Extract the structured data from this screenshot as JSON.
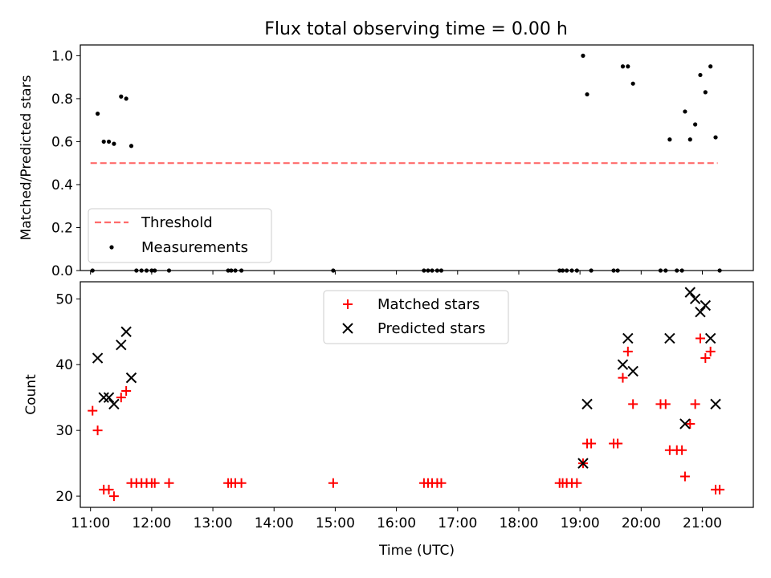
{
  "figure": {
    "title": "Flux total observing time = 0.00 h"
  },
  "chart_data": [
    {
      "type": "scatter",
      "ylabel": "Matched/Predicted stars",
      "xlabel": "",
      "x_axis": "time",
      "xlim": [
        "10:50",
        "21:50"
      ],
      "ylim": [
        0,
        1.05
      ],
      "yticks": [
        0.0,
        0.2,
        0.4,
        0.6,
        0.8,
        1.0
      ],
      "ytick_labels": [
        "0.0",
        "0.2",
        "0.4",
        "0.6",
        "0.8",
        "1.0"
      ],
      "legend_position": "lower-left",
      "threshold": {
        "name": "Threshold",
        "value": 0.5,
        "x": [
          "11:00",
          "21:15"
        ],
        "color": "#ff6b6b",
        "style": "dashed"
      },
      "series": [
        {
          "name": "Measurements",
          "marker": "dot",
          "color": "#000000",
          "points": [
            [
              "11:02",
              0.0
            ],
            [
              "11:07",
              0.73
            ],
            [
              "11:13",
              0.6
            ],
            [
              "11:18",
              0.6
            ],
            [
              "11:23",
              0.59
            ],
            [
              "11:30",
              0.81
            ],
            [
              "11:35",
              0.8
            ],
            [
              "11:40",
              0.58
            ],
            [
              "11:45",
              0.0
            ],
            [
              "11:50",
              0.0
            ],
            [
              "11:55",
              0.0
            ],
            [
              "12:00",
              0.0
            ],
            [
              "12:03",
              0.0
            ],
            [
              "12:17",
              0.0
            ],
            [
              "13:15",
              0.0
            ],
            [
              "13:18",
              0.0
            ],
            [
              "13:22",
              0.0
            ],
            [
              "13:28",
              0.0
            ],
            [
              "14:58",
              0.0
            ],
            [
              "16:27",
              0.0
            ],
            [
              "16:31",
              0.0
            ],
            [
              "16:35",
              0.0
            ],
            [
              "16:40",
              0.0
            ],
            [
              "16:44",
              0.0
            ],
            [
              "18:40",
              0.0
            ],
            [
              "18:43",
              0.0
            ],
            [
              "18:47",
              0.0
            ],
            [
              "18:52",
              0.0
            ],
            [
              "18:57",
              0.0
            ],
            [
              "19:03",
              1.0
            ],
            [
              "19:07",
              0.82
            ],
            [
              "19:11",
              0.0
            ],
            [
              "19:33",
              0.0
            ],
            [
              "19:37",
              0.0
            ],
            [
              "19:42",
              0.95
            ],
            [
              "19:47",
              0.95
            ],
            [
              "19:52",
              0.87
            ],
            [
              "20:19",
              0.0
            ],
            [
              "20:24",
              0.0
            ],
            [
              "20:28",
              0.61
            ],
            [
              "20:35",
              0.0
            ],
            [
              "20:40",
              0.0
            ],
            [
              "20:43",
              0.74
            ],
            [
              "20:48",
              0.61
            ],
            [
              "20:53",
              0.68
            ],
            [
              "20:58",
              0.91
            ],
            [
              "21:03",
              0.83
            ],
            [
              "21:08",
              0.95
            ],
            [
              "21:13",
              0.62
            ],
            [
              "21:17",
              0.0
            ]
          ]
        }
      ]
    },
    {
      "type": "scatter",
      "ylabel": "Count",
      "xlabel": "Time (UTC)",
      "x_axis": "time",
      "xlim": [
        "10:50",
        "21:50"
      ],
      "ylim": [
        18.3,
        52.6
      ],
      "yticks": [
        20,
        30,
        40,
        50
      ],
      "ytick_labels": [
        "20",
        "30",
        "40",
        "50"
      ],
      "xticks": [
        "11:00",
        "12:00",
        "13:00",
        "14:00",
        "15:00",
        "16:00",
        "17:00",
        "18:00",
        "19:00",
        "20:00",
        "21:00"
      ],
      "legend_position": "upper-center",
      "series": [
        {
          "name": "Matched stars",
          "marker": "plus",
          "color": "#ff0000",
          "points": [
            [
              "11:02",
              33
            ],
            [
              "11:07",
              30
            ],
            [
              "11:13",
              21
            ],
            [
              "11:18",
              21
            ],
            [
              "11:23",
              20
            ],
            [
              "11:30",
              35
            ],
            [
              "11:35",
              36
            ],
            [
              "11:40",
              22
            ],
            [
              "11:45",
              22
            ],
            [
              "11:50",
              22
            ],
            [
              "11:55",
              22
            ],
            [
              "12:00",
              22
            ],
            [
              "12:03",
              22
            ],
            [
              "12:17",
              22
            ],
            [
              "13:15",
              22
            ],
            [
              "13:18",
              22
            ],
            [
              "13:22",
              22
            ],
            [
              "13:28",
              22
            ],
            [
              "14:58",
              22
            ],
            [
              "16:27",
              22
            ],
            [
              "16:31",
              22
            ],
            [
              "16:35",
              22
            ],
            [
              "16:40",
              22
            ],
            [
              "16:44",
              22
            ],
            [
              "18:40",
              22
            ],
            [
              "18:43",
              22
            ],
            [
              "18:47",
              22
            ],
            [
              "18:52",
              22
            ],
            [
              "18:57",
              22
            ],
            [
              "19:03",
              25
            ],
            [
              "19:07",
              28
            ],
            [
              "19:11",
              28
            ],
            [
              "19:33",
              28
            ],
            [
              "19:37",
              28
            ],
            [
              "19:42",
              38
            ],
            [
              "19:47",
              42
            ],
            [
              "19:52",
              34
            ],
            [
              "20:19",
              34
            ],
            [
              "20:24",
              34
            ],
            [
              "20:28",
              27
            ],
            [
              "20:35",
              27
            ],
            [
              "20:40",
              27
            ],
            [
              "20:43",
              23
            ],
            [
              "20:48",
              31
            ],
            [
              "20:53",
              34
            ],
            [
              "20:58",
              44
            ],
            [
              "21:03",
              41
            ],
            [
              "21:08",
              42
            ],
            [
              "21:13",
              21
            ],
            [
              "21:17",
              21
            ]
          ]
        },
        {
          "name": "Predicted stars",
          "marker": "x",
          "color": "#000000",
          "points": [
            [
              "11:07",
              41
            ],
            [
              "11:13",
              35
            ],
            [
              "11:18",
              35
            ],
            [
              "11:23",
              34
            ],
            [
              "11:30",
              43
            ],
            [
              "11:35",
              45
            ],
            [
              "11:40",
              38
            ],
            [
              "19:03",
              25
            ],
            [
              "19:07",
              34
            ],
            [
              "19:42",
              40
            ],
            [
              "19:47",
              44
            ],
            [
              "19:52",
              39
            ],
            [
              "20:28",
              44
            ],
            [
              "20:43",
              31
            ],
            [
              "20:48",
              51
            ],
            [
              "20:53",
              50
            ],
            [
              "20:58",
              48
            ],
            [
              "21:03",
              49
            ],
            [
              "21:08",
              44
            ],
            [
              "21:13",
              34
            ]
          ]
        }
      ]
    }
  ]
}
